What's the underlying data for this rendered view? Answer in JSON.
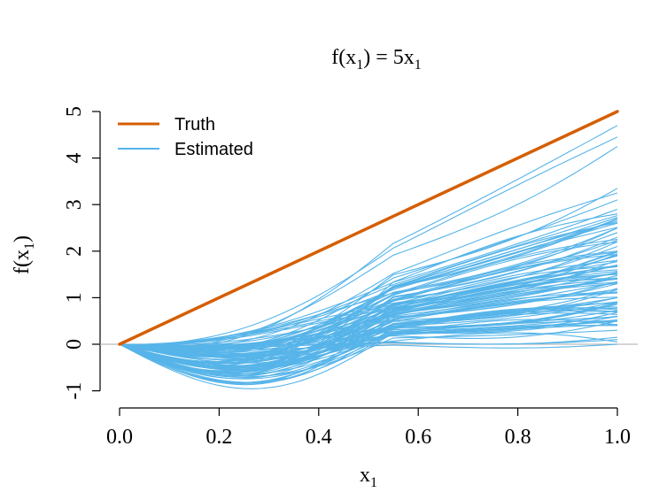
{
  "chart_data": {
    "type": "line",
    "title": {
      "pre": "f(x",
      "sub": "1",
      "post": ") = 5x",
      "post_sub": "1"
    },
    "xlabel": {
      "main": "x",
      "sub": "1"
    },
    "ylabel": {
      "pre": "f(x",
      "sub": "1",
      "post": ")"
    },
    "xlim": [
      0,
      1
    ],
    "ylim": [
      -1.25,
      5
    ],
    "x_ticks": [
      "0.0",
      "0.2",
      "0.4",
      "0.6",
      "0.8",
      "1.0"
    ],
    "y_ticks": [
      "-1",
      "0",
      "1",
      "2",
      "3",
      "4",
      "5"
    ],
    "grid": false,
    "reference_line": {
      "y": 0,
      "color": "#bbbbbb"
    },
    "legend": {
      "placement": "top-left",
      "entries": [
        {
          "label": "Truth",
          "color": "#D55E00"
        },
        {
          "label": "Estimated",
          "color": "#56B4E9"
        }
      ]
    },
    "series": [
      {
        "name": "Truth",
        "color": "#D55E00",
        "x": [
          0,
          1
        ],
        "y": [
          0,
          5
        ]
      },
      {
        "name": "Estimated",
        "color": "#56B4E9",
        "n_curves": 100,
        "note": "100 estimated curves; f(0)=0, endpoint values f(1) listed",
        "f_at_1": [
          4.7,
          4.45,
          4.25,
          3.35,
          3.25,
          3.1,
          2.9,
          2.8,
          2.7,
          2.6,
          2.5,
          2.4,
          2.3,
          2.2,
          2.1,
          2.0,
          1.9,
          1.8,
          1.7,
          1.6,
          1.5,
          1.4,
          1.3,
          1.2,
          1.1,
          1.0,
          0.9,
          0.8,
          0.7,
          0.6,
          0.5,
          0.4,
          0.3,
          0.15,
          0.1,
          0.05,
          0.0
        ],
        "min_near_x_0_2": -1.05
      }
    ]
  }
}
